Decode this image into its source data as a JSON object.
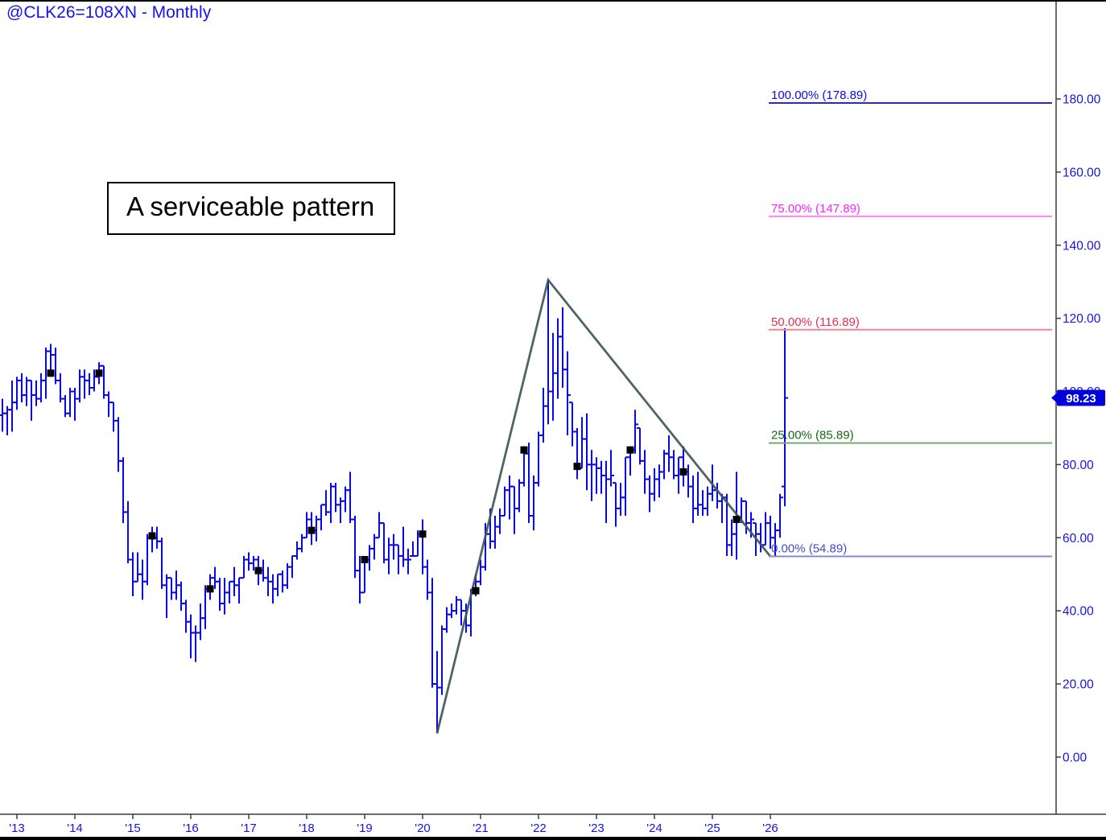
{
  "window": {
    "title": "@CLK26=108XN - Monthly"
  },
  "annotation": {
    "text": "A serviceable pattern"
  },
  "price_tag": {
    "text": "98.23",
    "bg": "#0000dd",
    "fg": "#ffffff"
  },
  "colors": {
    "bar": "#0808e0",
    "axis_line": "#3c3c3c",
    "axis_label": "#1414e6",
    "trendline": "#3f5858",
    "marker": "#000000"
  },
  "y_axis": {
    "tick_labels": [
      "0.00",
      "20.00",
      "40.00",
      "60.00",
      "80.00",
      "100.00",
      "120.00",
      "140.00",
      "160.00",
      "180.00"
    ],
    "tick_values": [
      0,
      20,
      40,
      60,
      80,
      100,
      120,
      140,
      160,
      180
    ]
  },
  "x_axis": {
    "year_labels": [
      "'13",
      "'14",
      "'15",
      "'16",
      "'17",
      "'18",
      "'19",
      "'20",
      "'21",
      "'22",
      "'23",
      "'24",
      "'25",
      "'26"
    ]
  },
  "fib_levels": [
    {
      "label": "100.00% (178.89)",
      "price": 178.89,
      "label_color": "#0a0aee",
      "line_color": "#2a2ad0"
    },
    {
      "label": "75.00% (147.89)",
      "price": 147.89,
      "label_color": "#ff22ff",
      "line_color": "#ff85f5"
    },
    {
      "label": "50.00% (116.89)",
      "price": 116.89,
      "label_color": "#e62e52",
      "line_color": "#f28495"
    },
    {
      "label": "25.00% (85.89)",
      "price": 85.89,
      "label_color": "#156615",
      "line_color": "#78aa78"
    },
    {
      "label": "0.00% (54.89)",
      "price": 54.89,
      "label_color": "#4949cf",
      "line_color": "#8787dd"
    }
  ],
  "trendline": {
    "points": [
      {
        "i": 90,
        "price": 6.5
      },
      {
        "i": 113,
        "price": 130.5
      },
      {
        "i": 159,
        "price": 54.89
      }
    ]
  },
  "markers": {
    "points": [
      {
        "i": 10,
        "price": 105
      },
      {
        "i": 20,
        "price": 105
      },
      {
        "i": 31,
        "price": 60.5
      },
      {
        "i": 43,
        "price": 46
      },
      {
        "i": 53,
        "price": 51
      },
      {
        "i": 64,
        "price": 62
      },
      {
        "i": 75,
        "price": 54
      },
      {
        "i": 87,
        "price": 61
      },
      {
        "i": 98,
        "price": 45.5
      },
      {
        "i": 108,
        "price": 84
      },
      {
        "i": 119,
        "price": 79.5
      },
      {
        "i": 130,
        "price": 84
      },
      {
        "i": 141,
        "price": 78
      },
      {
        "i": 152,
        "price": 65
      }
    ]
  },
  "chart_data": {
    "type": "bar",
    "subtype": "ohlc-monthly",
    "symbol": "@CLK26=108XN",
    "timeframe": "Monthly",
    "title": "@CLK26=108XN - Monthly",
    "ylim": [
      0,
      190
    ],
    "start_month": "2012-10",
    "last_close": 98.23,
    "legend_position": "none",
    "grid": false,
    "bars_hlc": [
      [
        98,
        89,
        94
      ],
      [
        96,
        88,
        95
      ],
      [
        103,
        89,
        97
      ],
      [
        104,
        95,
        103
      ],
      [
        105,
        97,
        99
      ],
      [
        104,
        96,
        103
      ],
      [
        103,
        92,
        99
      ],
      [
        103,
        96,
        98
      ],
      [
        105,
        97,
        103
      ],
      [
        112,
        98,
        111
      ],
      [
        113,
        104,
        110
      ],
      [
        112,
        102,
        103
      ],
      [
        105,
        97,
        98
      ],
      [
        99,
        93,
        94
      ],
      [
        101,
        93,
        100
      ],
      [
        101,
        92,
        98
      ],
      [
        106,
        97,
        104
      ],
      [
        106,
        98,
        103
      ],
      [
        105,
        99,
        101
      ],
      [
        106,
        100,
        104
      ],
      [
        108,
        102,
        107
      ],
      [
        107,
        98,
        99
      ],
      [
        100,
        93,
        97
      ],
      [
        97,
        89,
        92
      ],
      [
        93,
        78,
        81
      ],
      [
        82,
        64,
        67
      ],
      [
        70,
        53,
        54
      ],
      [
        56,
        44,
        48
      ],
      [
        56,
        48,
        50
      ],
      [
        54,
        43,
        48
      ],
      [
        61,
        47,
        60
      ],
      [
        63,
        56,
        60
      ],
      [
        63,
        57,
        59
      ],
      [
        60,
        46,
        47
      ],
      [
        50,
        38,
        49
      ],
      [
        49,
        43,
        45
      ],
      [
        51,
        43,
        47
      ],
      [
        48,
        40,
        42
      ],
      [
        43,
        34,
        37
      ],
      [
        39,
        27,
        34
      ],
      [
        36,
        26,
        34
      ],
      [
        42,
        32,
        38
      ],
      [
        47,
        35,
        46
      ],
      [
        50,
        43,
        49
      ],
      [
        52,
        46,
        48
      ],
      [
        49,
        40,
        42
      ],
      [
        49,
        39,
        45
      ],
      [
        48,
        42,
        48
      ],
      [
        52,
        44,
        47
      ],
      [
        49,
        42,
        49
      ],
      [
        55,
        49,
        54
      ],
      [
        56,
        51,
        53
      ],
      [
        55,
        51,
        54
      ],
      [
        55,
        47,
        51
      ],
      [
        54,
        48,
        49
      ],
      [
        52,
        44,
        48
      ],
      [
        50,
        42,
        46
      ],
      [
        50,
        44,
        50
      ],
      [
        51,
        45,
        47
      ],
      [
        53,
        46,
        52
      ],
      [
        55,
        49,
        55
      ],
      [
        59,
        54,
        57
      ],
      [
        61,
        56,
        60
      ],
      [
        67,
        60,
        65
      ],
      [
        67,
        58,
        62
      ],
      [
        66,
        59,
        65
      ],
      [
        69,
        62,
        69
      ],
      [
        73,
        66,
        67
      ],
      [
        75,
        64,
        74
      ],
      [
        75,
        67,
        69
      ],
      [
        71,
        64,
        70
      ],
      [
        74,
        67,
        73
      ],
      [
        78,
        64,
        65
      ],
      [
        66,
        49,
        51
      ],
      [
        55,
        42,
        45
      ],
      [
        55,
        45,
        54
      ],
      [
        58,
        51,
        57
      ],
      [
        61,
        54,
        60
      ],
      [
        67,
        60,
        64
      ],
      [
        64,
        53,
        54
      ],
      [
        60,
        50,
        58
      ],
      [
        61,
        54,
        58
      ],
      [
        58,
        50,
        55
      ],
      [
        63,
        52,
        54
      ],
      [
        57,
        50,
        54
      ],
      [
        59,
        55,
        55
      ],
      [
        62,
        55,
        61
      ],
      [
        65,
        50,
        52
      ],
      [
        54,
        43,
        45
      ],
      [
        49,
        19,
        20
      ],
      [
        29,
        6.5,
        19
      ],
      [
        36,
        17,
        35
      ],
      [
        41,
        34,
        39
      ],
      [
        42,
        38,
        40
      ],
      [
        44,
        39,
        43
      ],
      [
        43,
        36,
        40
      ],
      [
        42,
        34,
        36
      ],
      [
        46,
        33,
        45
      ],
      [
        50,
        44,
        48
      ],
      [
        54,
        47,
        52
      ],
      [
        64,
        51,
        61
      ],
      [
        68,
        57,
        59
      ],
      [
        66,
        57,
        63
      ],
      [
        68,
        61,
        66
      ],
      [
        74,
        66,
        73
      ],
      [
        77,
        65,
        74
      ],
      [
        74,
        61,
        68
      ],
      [
        76,
        67,
        75
      ],
      [
        85,
        74,
        83
      ],
      [
        86,
        64,
        66
      ],
      [
        77,
        62,
        75
      ],
      [
        89,
        74,
        88
      ],
      [
        101,
        86,
        96
      ],
      [
        130.5,
        91,
        100
      ],
      [
        116,
        92,
        105
      ],
      [
        120,
        98,
        115
      ],
      [
        123,
        101,
        106
      ],
      [
        111,
        88,
        99
      ],
      [
        97,
        85,
        89
      ],
      [
        90,
        76,
        79
      ],
      [
        93,
        79,
        87
      ],
      [
        94,
        73,
        80
      ],
      [
        84,
        70,
        80
      ],
      [
        82,
        72,
        79
      ],
      [
        81,
        72,
        77
      ],
      [
        81,
        64,
        76
      ],
      [
        84,
        74,
        77
      ],
      [
        75,
        63,
        68
      ],
      [
        75,
        66,
        71
      ],
      [
        82,
        66,
        82
      ],
      [
        85,
        77,
        84
      ],
      [
        95,
        83,
        91
      ],
      [
        90,
        80,
        81
      ],
      [
        84,
        72,
        76
      ],
      [
        77,
        67,
        72
      ],
      [
        79,
        70,
        76
      ],
      [
        80,
        71,
        78
      ],
      [
        84,
        76,
        83
      ],
      [
        88,
        78,
        82
      ],
      [
        84,
        76,
        77
      ],
      [
        82,
        72,
        82
      ],
      [
        85,
        74,
        78
      ],
      [
        80,
        71,
        74
      ],
      [
        77,
        64,
        68
      ],
      [
        78,
        66,
        69
      ],
      [
        73,
        66,
        68
      ],
      [
        74,
        66,
        72
      ],
      [
        80,
        70,
        73
      ],
      [
        75,
        68,
        70
      ],
      [
        72,
        64,
        71
      ],
      [
        72,
        55,
        58
      ],
      [
        65,
        55,
        61
      ],
      [
        78,
        54,
        65
      ],
      [
        71,
        64,
        70
      ],
      [
        70,
        61,
        64
      ],
      [
        67,
        60,
        65
      ],
      [
        64,
        55,
        61
      ],
      [
        64,
        56,
        58
      ],
      [
        67,
        58,
        64
      ],
      [
        66,
        57,
        60
      ],
      [
        64,
        55,
        62
      ],
      [
        72,
        60,
        71
      ],
      [
        117.3,
        68.6,
        98.23,
        74
      ]
    ]
  }
}
